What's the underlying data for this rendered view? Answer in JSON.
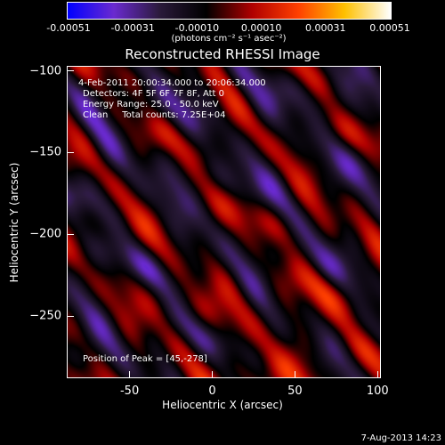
{
  "chart_data": {
    "type": "heatmap",
    "title": "Reconstructed RHESSI Image",
    "xlabel": "Heliocentric X (arcsec)",
    "ylabel": "Heliocentric Y (arcsec)",
    "xlim": [
      -88,
      102
    ],
    "ylim": [
      -288,
      -97
    ],
    "x_ticks": [
      -50,
      0,
      50,
      100
    ],
    "y_ticks": [
      -100,
      -150,
      -200,
      -250
    ],
    "colorbar": {
      "range": [
        -0.00051,
        0.00051
      ],
      "tick_labels": [
        "-0.00051",
        "-0.00031",
        "-0.00010",
        "0.00010",
        "0.00031",
        "0.00051"
      ],
      "units": "(photons cm⁻² s⁻¹ asec⁻²)",
      "colors": [
        "#0000ff",
        "#6a2ad0",
        "#2a1a3a",
        "#000000",
        "#b00000",
        "#ff4000",
        "#ffc000",
        "#ffffff"
      ]
    },
    "annotations": {
      "time_range": "4-Feb-2011 20:00:34.000 to 20:06:34.000",
      "detectors": "Detectors: 4F 5F 6F 7F 8F, Att 0",
      "energy_range": "Energy Range: 25.0 - 50.0 keV",
      "algorithm": "Clean     Total counts: 7.25E+04",
      "peak": "Position of Peak = [45,-278]"
    },
    "peak": [
      45,
      -278
    ]
  },
  "timestamp": "7-Aug-2013 14:23"
}
